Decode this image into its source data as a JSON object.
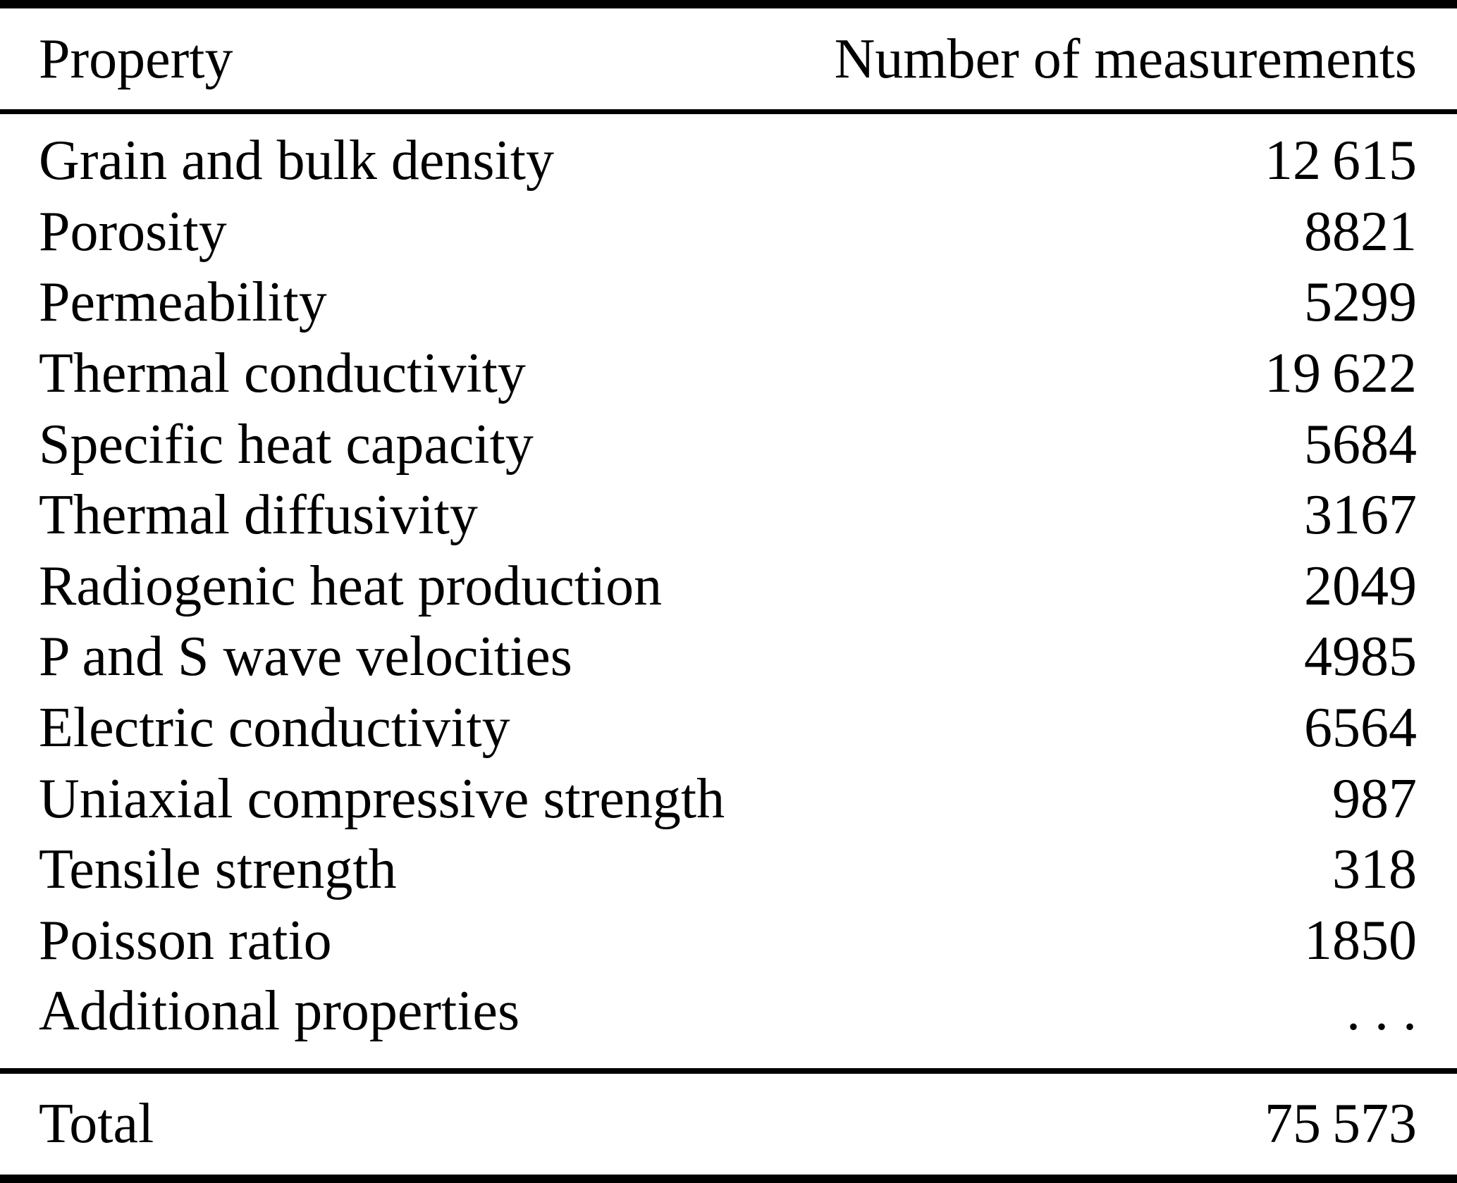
{
  "page": {
    "background_color": "#ffffff",
    "text_color": "#000000"
  },
  "table": {
    "header": {
      "property": "Property",
      "measurements": "Number of measurements"
    },
    "rows": [
      {
        "property": "Grain and bulk density",
        "count": "12 615"
      },
      {
        "property": "Porosity",
        "count": "8821"
      },
      {
        "property": "Permeability",
        "count": "5299"
      },
      {
        "property": "Thermal conductivity",
        "count": "19 622"
      },
      {
        "property": "Specific heat capacity",
        "count": "5684"
      },
      {
        "property": "Thermal diffusivity",
        "count": "3167"
      },
      {
        "property": "Radiogenic heat production",
        "count": "2049"
      },
      {
        "property": "P and S wave velocities",
        "count": "4985"
      },
      {
        "property": "Electric conductivity",
        "count": "6564"
      },
      {
        "property": "Uniaxial compressive strength",
        "count": "987"
      },
      {
        "property": "Tensile strength",
        "count": "318"
      },
      {
        "property": "Poisson ratio",
        "count": "1850"
      },
      {
        "property": "Additional properties",
        "count": ". . ."
      }
    ],
    "total": {
      "label": "Total",
      "value": "75 573"
    }
  }
}
